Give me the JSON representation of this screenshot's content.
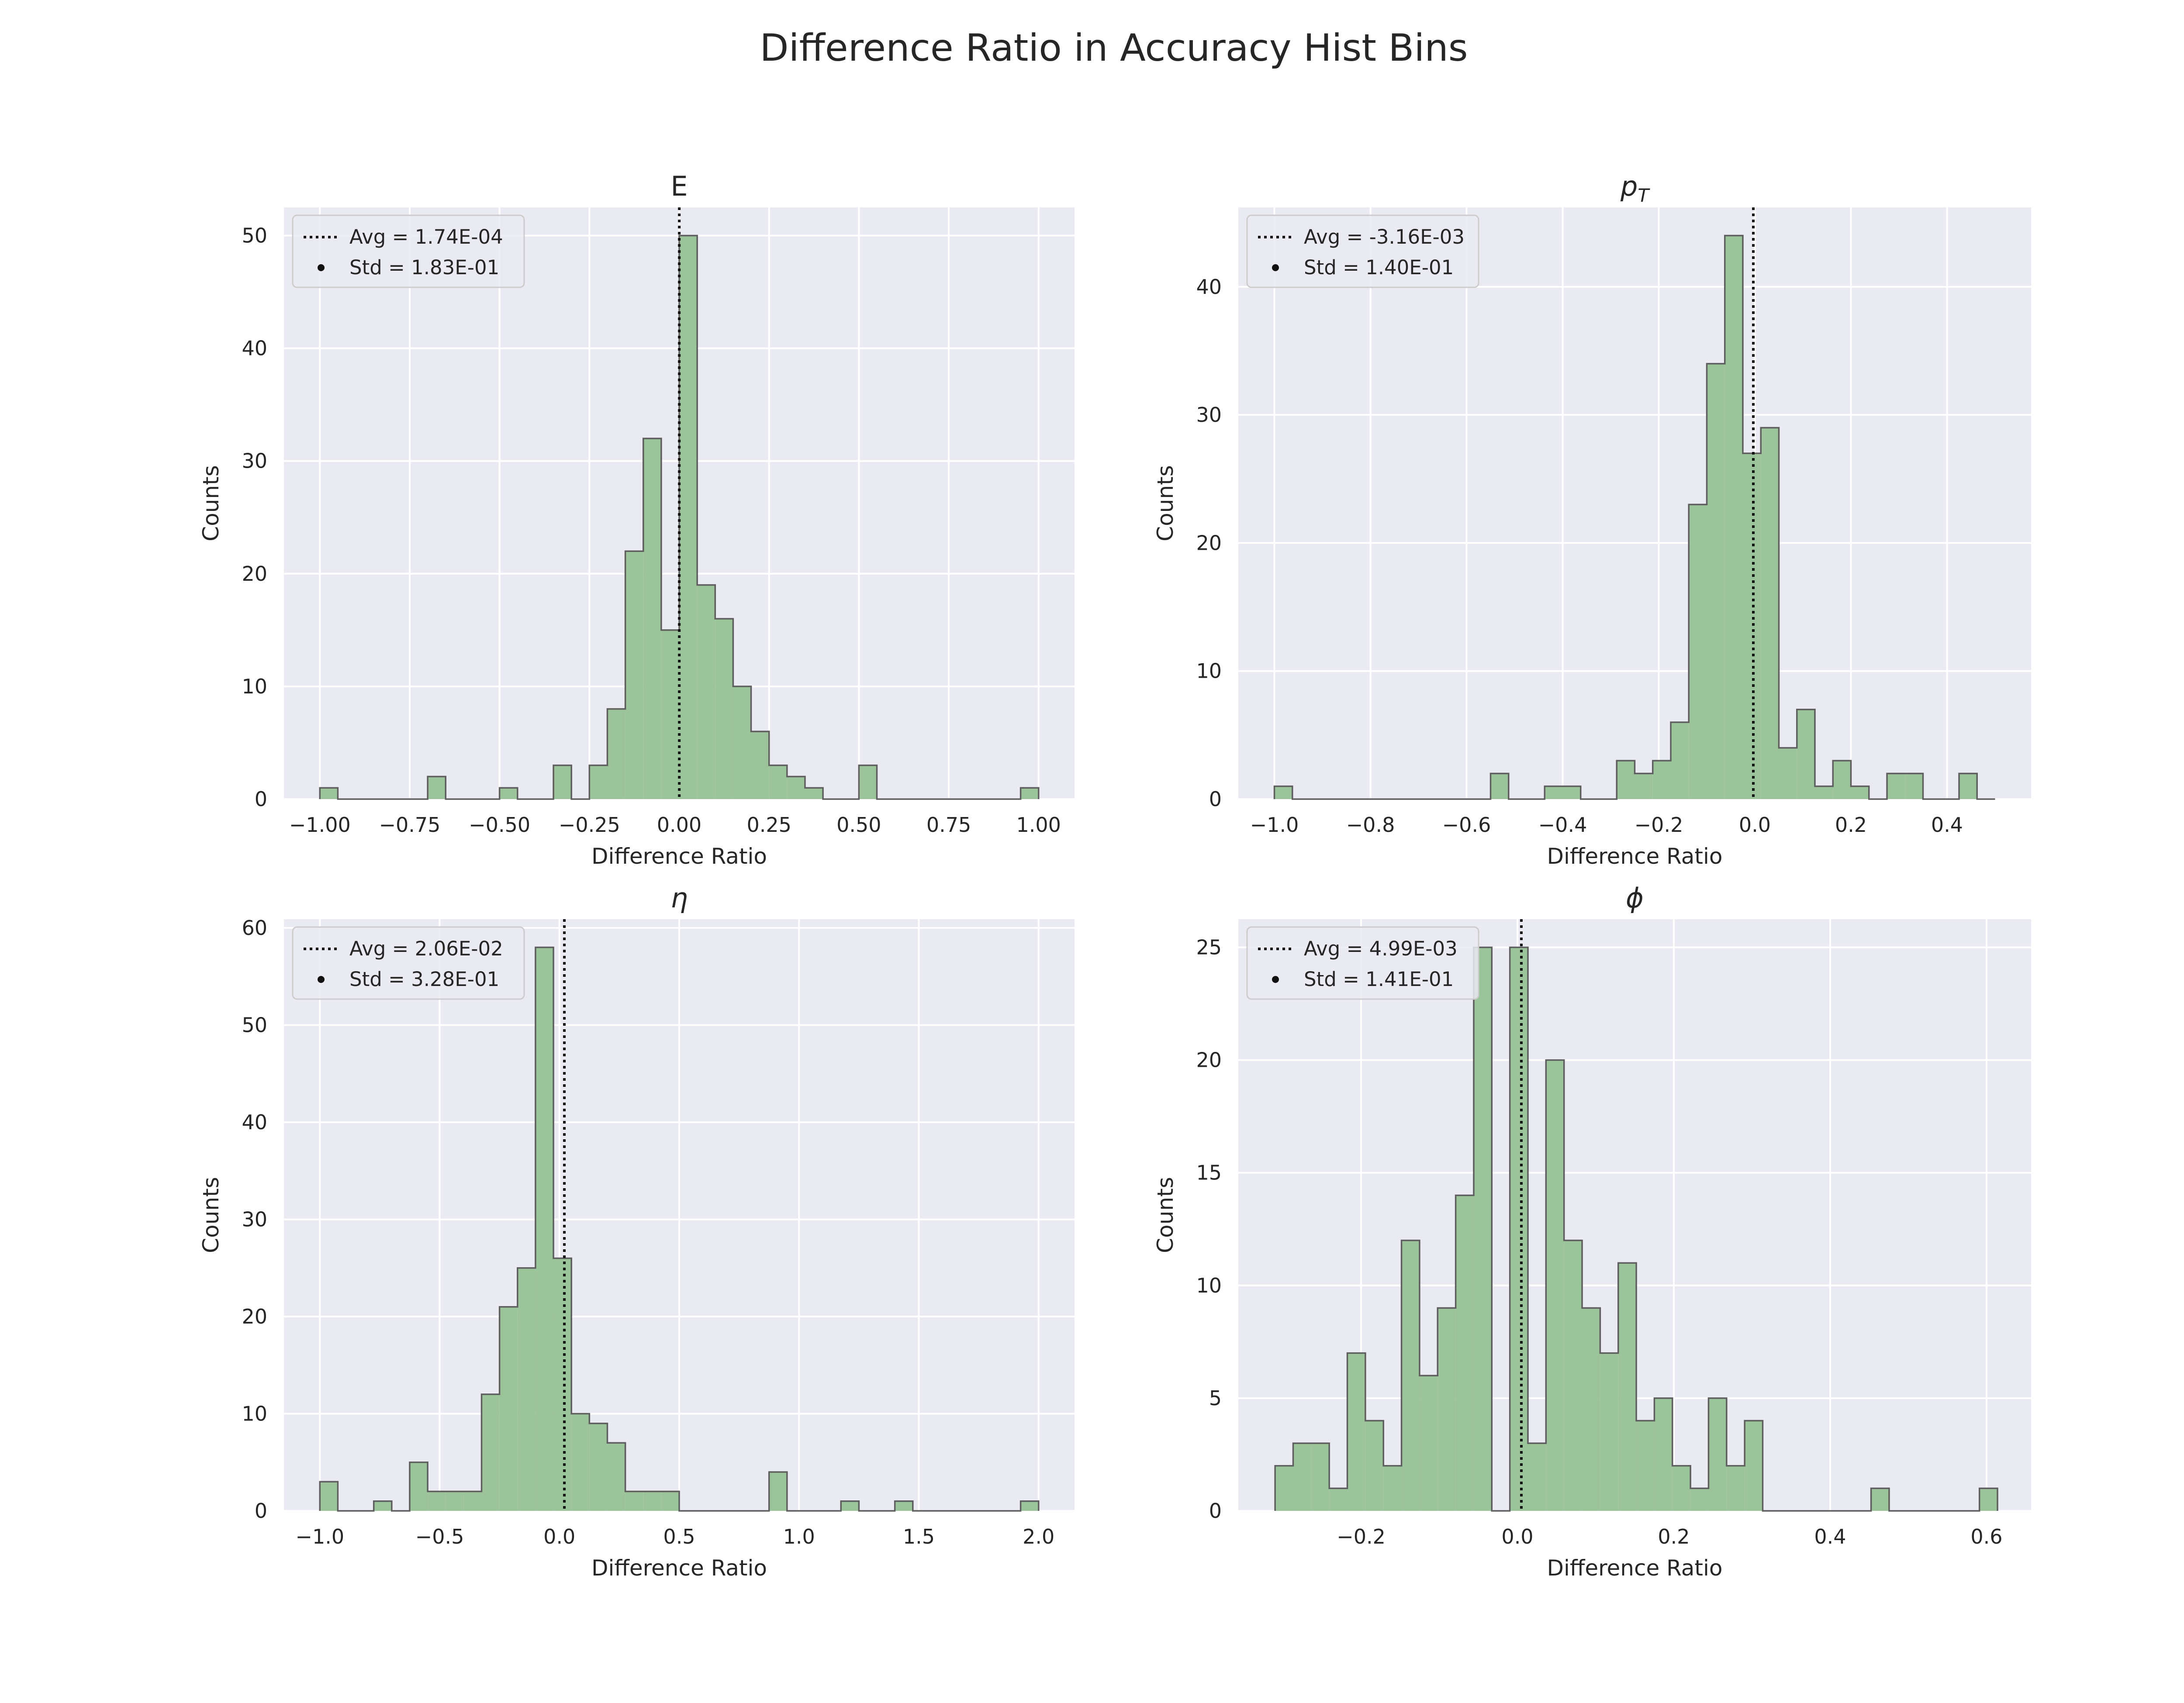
{
  "figure": {
    "title": "Difference Ratio in Accuracy Hist Bins"
  },
  "colors": {
    "background": "#eaeaf2",
    "grid": "#ffffff",
    "bar_fill": "#9bc49b",
    "bar_edge": "#5e5e5e",
    "avg_line": "#111111"
  },
  "chart_data": [
    {
      "type": "bar",
      "title": "E",
      "xlabel": "Difference Ratio",
      "ylabel": "Counts",
      "xlim": [
        -1.1,
        1.1
      ],
      "ylim": [
        0,
        52.5
      ],
      "xticks": [
        -1.0,
        -0.75,
        -0.5,
        -0.25,
        0.0,
        0.25,
        0.5,
        0.75,
        1.0
      ],
      "xtick_labels": [
        "−1.00",
        "−0.75",
        "−0.50",
        "−0.25",
        "0.00",
        "0.25",
        "0.50",
        "0.75",
        "1.00"
      ],
      "yticks": [
        0,
        10,
        20,
        30,
        40,
        50
      ],
      "ytick_labels": [
        "0",
        "10",
        "20",
        "30",
        "40",
        "50"
      ],
      "bin_edges": [
        -1.0,
        -0.95,
        -0.9,
        -0.85,
        -0.8,
        -0.75,
        -0.7,
        -0.65,
        -0.6,
        -0.55,
        -0.5,
        -0.45,
        -0.4,
        -0.35,
        -0.3,
        -0.25,
        -0.2,
        -0.15,
        -0.1,
        -0.05,
        0.0,
        0.05,
        0.1,
        0.15,
        0.2,
        0.25,
        0.3,
        0.35,
        0.4,
        0.45,
        0.5,
        0.55,
        0.6,
        0.65,
        0.7,
        0.75,
        0.8,
        0.85,
        0.9,
        0.95,
        1.0
      ],
      "counts": [
        1,
        0,
        0,
        0,
        0,
        0,
        2,
        0,
        0,
        0,
        1,
        0,
        0,
        3,
        0,
        3,
        8,
        22,
        32,
        15,
        50,
        19,
        16,
        10,
        6,
        3,
        2,
        1,
        0,
        0,
        3,
        0,
        0,
        0,
        0,
        0,
        0,
        0,
        0,
        1
      ],
      "avg_value": 0.000174,
      "legend": {
        "position": "upper left",
        "entries": [
          "Avg = 1.74E-04",
          "Std = 1.83E-01"
        ]
      }
    },
    {
      "type": "bar",
      "title": "p",
      "title_sub": "T",
      "xlabel": "Difference Ratio",
      "ylabel": "Counts",
      "xlim": [
        -1.075,
        0.575
      ],
      "ylim": [
        0,
        46.2
      ],
      "xticks": [
        -1.0,
        -0.8,
        -0.6,
        -0.4,
        -0.2,
        0.0,
        0.2,
        0.4
      ],
      "xtick_labels": [
        "−1.0",
        "−0.8",
        "−0.6",
        "−0.4",
        "−0.2",
        "0.0",
        "0.2",
        "0.4"
      ],
      "yticks": [
        0,
        10,
        20,
        30,
        40
      ],
      "ytick_labels": [
        "0",
        "10",
        "20",
        "30",
        "40"
      ],
      "bin_edges": [
        -1.0,
        -0.9625,
        -0.925,
        -0.8875,
        -0.85,
        -0.8125,
        -0.775,
        -0.7375,
        -0.7,
        -0.6625,
        -0.625,
        -0.5875,
        -0.55,
        -0.5125,
        -0.475,
        -0.4375,
        -0.4,
        -0.3625,
        -0.325,
        -0.2875,
        -0.25,
        -0.2125,
        -0.175,
        -0.1375,
        -0.1,
        -0.0625,
        -0.025,
        0.0125,
        0.05,
        0.0875,
        0.125,
        0.1625,
        0.2,
        0.2375,
        0.275,
        0.3125,
        0.35,
        0.3875,
        0.425,
        0.4625,
        0.5
      ],
      "counts": [
        1,
        0,
        0,
        0,
        0,
        0,
        0,
        0,
        0,
        0,
        0,
        0,
        2,
        0,
        0,
        1,
        1,
        0,
        0,
        3,
        2,
        3,
        6,
        23,
        34,
        44,
        27,
        29,
        4,
        7,
        1,
        3,
        1,
        0,
        2,
        2,
        0,
        0,
        2,
        0
      ],
      "avg_value": -0.00316,
      "legend": {
        "position": "upper left",
        "entries": [
          "Avg = -3.16E-03",
          "Std = 1.40E-01"
        ]
      }
    },
    {
      "type": "bar",
      "title": "η",
      "xlabel": "Difference Ratio",
      "ylabel": "Counts",
      "xlim": [
        -1.15,
        2.15
      ],
      "ylim": [
        0,
        60.9
      ],
      "xticks": [
        -1.0,
        -0.5,
        0.0,
        0.5,
        1.0,
        1.5,
        2.0
      ],
      "xtick_labels": [
        "−1.0",
        "−0.5",
        "0.0",
        "0.5",
        "1.0",
        "1.5",
        "2.0"
      ],
      "yticks": [
        0,
        10,
        20,
        30,
        40,
        50,
        60
      ],
      "ytick_labels": [
        "0",
        "10",
        "20",
        "30",
        "40",
        "50",
        "60"
      ],
      "bin_edges": [
        -1.0,
        -0.925,
        -0.85,
        -0.775,
        -0.7,
        -0.625,
        -0.55,
        -0.475,
        -0.4,
        -0.325,
        -0.25,
        -0.175,
        -0.1,
        -0.025,
        0.05,
        0.125,
        0.2,
        0.275,
        0.35,
        0.425,
        0.5,
        0.575,
        0.65,
        0.725,
        0.8,
        0.875,
        0.95,
        1.025,
        1.1,
        1.175,
        1.25,
        1.325,
        1.4,
        1.475,
        1.55,
        1.625,
        1.7,
        1.775,
        1.85,
        1.925,
        2.0
      ],
      "counts": [
        3,
        0,
        0,
        1,
        0,
        5,
        2,
        2,
        2,
        12,
        21,
        25,
        58,
        26,
        10,
        9,
        7,
        2,
        2,
        2,
        0,
        0,
        0,
        0,
        0,
        4,
        0,
        0,
        0,
        1,
        0,
        0,
        1,
        0,
        0,
        0,
        0,
        0,
        0,
        1
      ],
      "avg_value": 0.0206,
      "legend": {
        "position": "upper left",
        "entries": [
          "Avg = 2.06E-02",
          "Std = 3.28E-01"
        ]
      }
    },
    {
      "type": "bar",
      "title": "ϕ",
      "xlabel": "Difference Ratio",
      "ylabel": "Counts",
      "xlim": [
        -0.357,
        0.657
      ],
      "ylim": [
        0,
        26.25
      ],
      "xticks": [
        -0.2,
        0.0,
        0.2,
        0.4,
        0.6
      ],
      "xtick_labels": [
        "−0.2",
        "0.0",
        "0.2",
        "0.4",
        "0.6"
      ],
      "yticks": [
        0,
        5,
        10,
        15,
        20,
        25
      ],
      "ytick_labels": [
        "0",
        "5",
        "10",
        "15",
        "20",
        "25"
      ],
      "bin_edges": [
        -0.31,
        -0.2869,
        -0.2638,
        -0.2407,
        -0.2176,
        -0.1945,
        -0.1714,
        -0.1483,
        -0.1252,
        -0.1021,
        -0.079,
        -0.0559,
        -0.0328,
        -0.0097,
        0.0134,
        0.0365,
        0.0596,
        0.0827,
        0.1058,
        0.1289,
        0.152,
        0.1751,
        0.1982,
        0.2213,
        0.2444,
        0.2675,
        0.2906,
        0.3137,
        0.3368,
        0.3599,
        0.383,
        0.4061,
        0.4292,
        0.4523,
        0.4754,
        0.4985,
        0.5216,
        0.5447,
        0.5678,
        0.5909,
        0.614
      ],
      "counts": [
        2,
        3,
        3,
        1,
        7,
        4,
        2,
        12,
        6,
        9,
        14,
        25,
        0,
        25,
        3,
        20,
        12,
        9,
        7,
        11,
        4,
        5,
        2,
        1,
        5,
        2,
        4,
        0,
        0,
        0,
        0,
        0,
        0,
        1,
        0,
        0,
        0,
        0,
        0,
        1
      ],
      "avg_value": 0.00499,
      "legend": {
        "position": "upper left",
        "entries": [
          "Avg = 4.99E-03",
          "Std = 1.41E-01"
        ]
      }
    }
  ]
}
